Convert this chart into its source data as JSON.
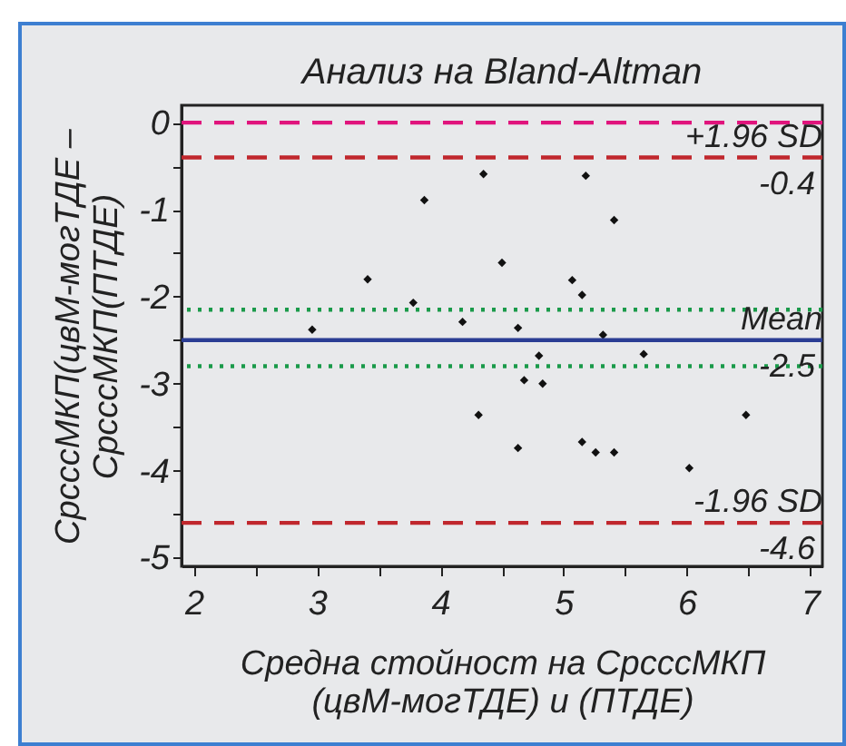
{
  "chart_data": {
    "type": "scatter",
    "title": "Анализ на Bland-Altman",
    "xlabel": "Средна стойност на СрсссМКП\n(цвМ-могТДЕ) и (ПТДЕ)",
    "ylabel": "СрсссМКП(цвМ-могТДЕ –\nСрсссМКП(ПТДЕ)",
    "marker": "diamond",
    "grid": false,
    "xlim": [
      1.9,
      7.1
    ],
    "xticks": [
      2,
      {
        "value": 2.5,
        "label": null
      },
      3,
      {
        "value": 3.5,
        "label": null
      },
      4,
      {
        "value": 4.5,
        "label": null
      },
      5,
      {
        "value": 5.5,
        "label": null
      },
      6,
      {
        "value": 6.5,
        "label": null
      },
      7
    ],
    "ylim": [
      -5.1,
      0.2
    ],
    "yticks": [
      0,
      {
        "value": -0.5,
        "label": null
      },
      -1,
      {
        "value": -1.5,
        "label": null
      },
      -2,
      {
        "value": -2.5,
        "label": null
      },
      -3,
      {
        "value": -3.5,
        "label": null
      },
      -4,
      {
        "value": -4.5,
        "label": null
      },
      -5
    ],
    "series": [
      {
        "color": "#111111",
        "x": [
          2.96,
          3.41,
          3.78,
          3.87,
          4.18,
          4.31,
          4.35,
          4.5,
          4.63,
          4.63,
          4.68,
          4.8,
          4.83,
          5.07,
          5.15,
          5.18,
          5.15,
          5.26,
          5.32,
          5.41,
          5.41,
          5.65,
          6.02,
          6.48
        ],
        "values": [
          -2.38,
          -1.8,
          -2.07,
          -0.89,
          -2.29,
          -3.36,
          -0.59,
          -1.61,
          -2.36,
          -3.74,
          -2.96,
          -2.68,
          -3.0,
          -1.81,
          -1.98,
          -0.61,
          -3.67,
          -3.79,
          -2.44,
          -1.12,
          -3.79,
          -2.66,
          -3.97,
          -3.36
        ]
      }
    ],
    "ref_lines": [
      {
        "axis": "y",
        "value": 0,
        "color": "#e0147c",
        "line_style": "dashed"
      },
      {
        "axis": "y",
        "value": -0.4,
        "label": "+1.96 SD",
        "color": "#c0272d",
        "line_style": "dashed"
      },
      {
        "axis": "y",
        "value": -2.15,
        "color": "#1a9a4a",
        "line_style": "dotted"
      },
      {
        "axis": "y",
        "value": -2.5,
        "label": "Mean",
        "color": "#2b3d94",
        "line_style": "solid"
      },
      {
        "axis": "y",
        "value": -2.8,
        "color": "#1a9a4a",
        "line_style": "dotted"
      },
      {
        "axis": "y",
        "value": -4.6,
        "label": "-1.96 SD",
        "color": "#c0272d",
        "line_style": "dashed"
      }
    ],
    "annotations": [
      {
        "text": "-0.4",
        "y": -0.4
      },
      {
        "text": "-2.5",
        "y": -2.5
      },
      {
        "text": "-4.6",
        "y": -4.6
      }
    ]
  }
}
